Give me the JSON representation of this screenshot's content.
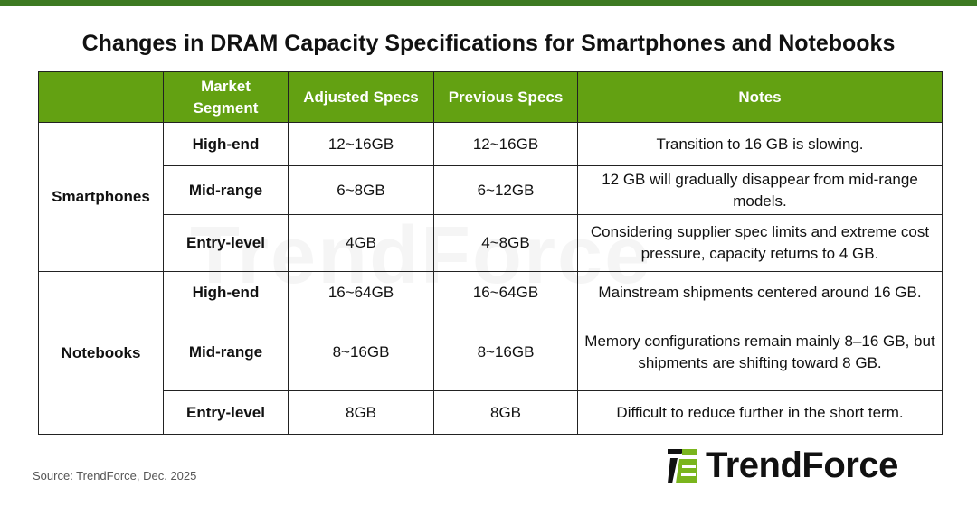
{
  "title": "Changes in DRAM Capacity Specifications for Smartphones and Notebooks",
  "colors": {
    "top_bar": "#3d7a22",
    "header_bg": "#63a112",
    "logo_green": "#7ab51d"
  },
  "table": {
    "headers": [
      "",
      "Market Segment",
      "Adjusted Specs",
      "Previous Specs",
      "Notes"
    ],
    "groups": [
      {
        "name": "Smartphones",
        "rows": [
          {
            "segment": "High-end",
            "adjusted": "12~16GB",
            "previous": "12~16GB",
            "notes": "Transition to 16 GB is slowing."
          },
          {
            "segment": "Mid-range",
            "adjusted": "6~8GB",
            "previous": "6~12GB",
            "notes": "12 GB will gradually disappear from mid-range models."
          },
          {
            "segment": "Entry-level",
            "adjusted": "4GB",
            "previous": "4~8GB",
            "notes": "Considering supplier spec limits and extreme cost pressure, capacity returns to 4 GB."
          }
        ]
      },
      {
        "name": "Notebooks",
        "rows": [
          {
            "segment": "High-end",
            "adjusted": "16~64GB",
            "previous": "16~64GB",
            "notes": "Mainstream shipments centered around 16 GB."
          },
          {
            "segment": "Mid-range",
            "adjusted": "8~16GB",
            "previous": "8~16GB",
            "notes": "Memory configurations remain mainly 8–16 GB, but shipments are shifting toward 8 GB."
          },
          {
            "segment": "Entry-level",
            "adjusted": "8GB",
            "previous": "8GB",
            "notes": "Difficult to reduce further in the short term."
          }
        ]
      }
    ]
  },
  "source": "Source: TrendForce,  Dec. 2025",
  "logo": {
    "text": "TrendForce"
  },
  "watermark": "TrendForce"
}
